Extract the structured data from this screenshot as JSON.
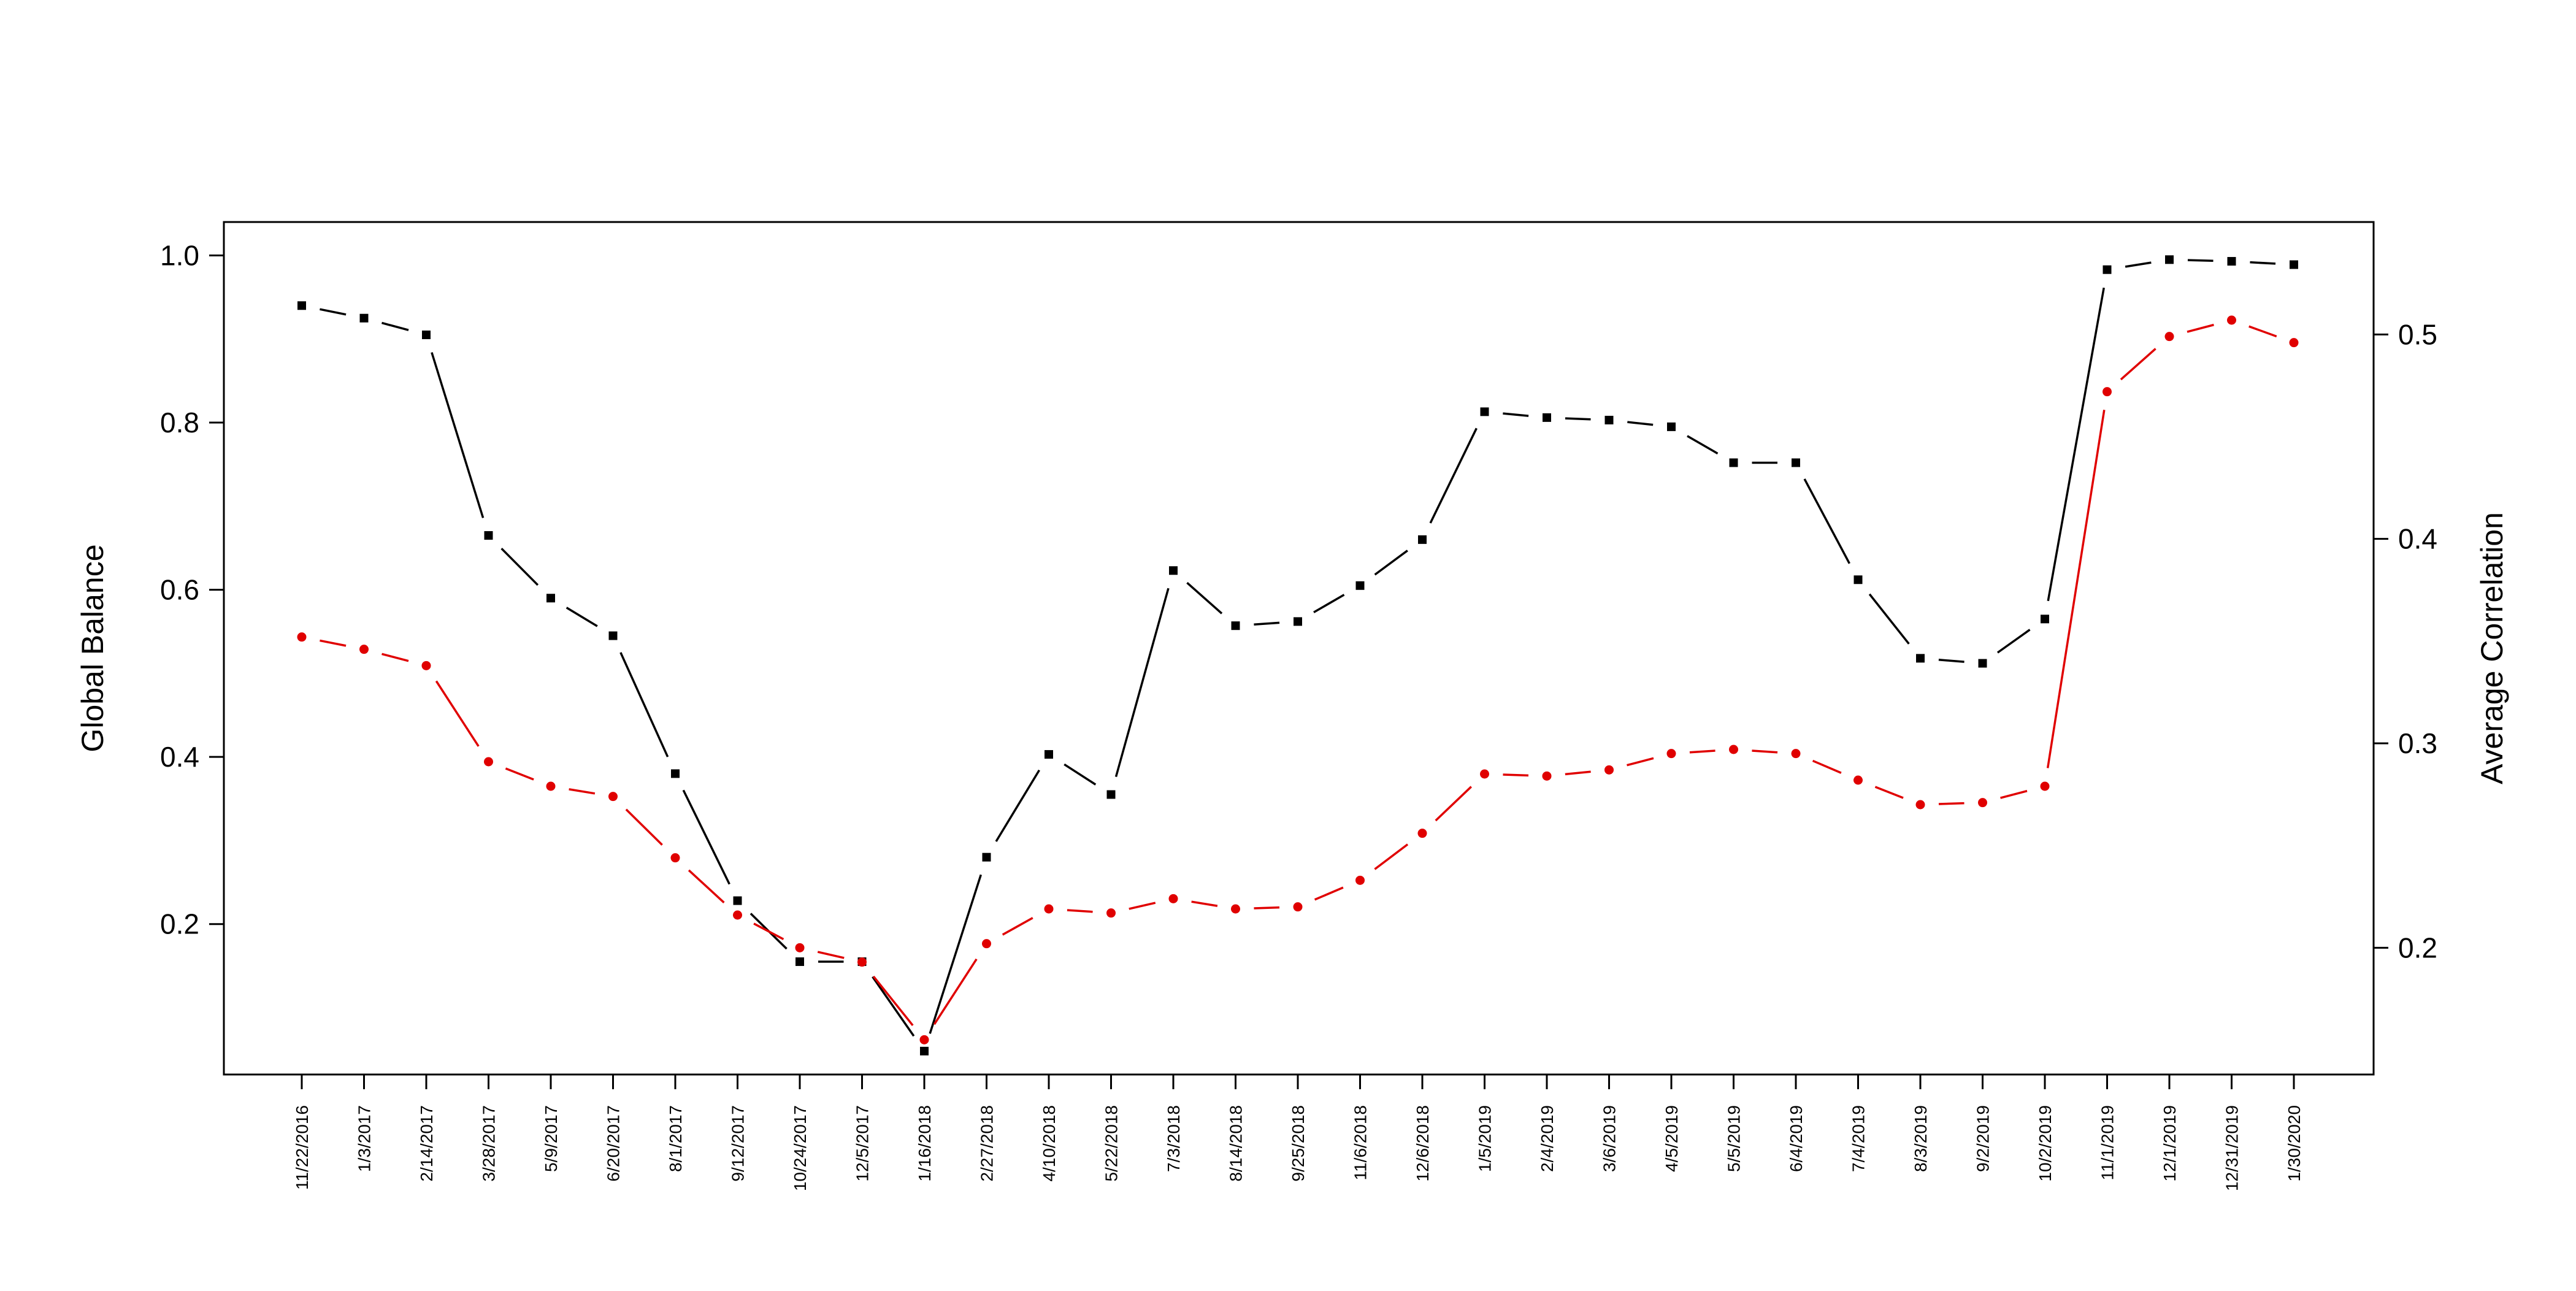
{
  "chart_data": {
    "type": "line",
    "title": "",
    "xlabel": "",
    "ylabel_left": "Global Balance",
    "ylabel_right": "Average Correlation",
    "x": [
      "11/22/2016",
      "1/3/2017",
      "2/14/2017",
      "3/28/2017",
      "5/9/2017",
      "6/20/2017",
      "8/1/2017",
      "9/12/2017",
      "10/24/2017",
      "12/5/2017",
      "1/16/2018",
      "2/27/2018",
      "4/10/2018",
      "5/22/2018",
      "7/3/2018",
      "8/14/2018",
      "9/25/2018",
      "11/6/2018",
      "12/6/2018",
      "1/5/2019",
      "2/4/2019",
      "3/6/2019",
      "4/5/2019",
      "5/5/2019",
      "6/4/2019",
      "7/4/2019",
      "8/3/2019",
      "9/2/2019",
      "10/2/2019",
      "11/1/2019",
      "12/1/2019",
      "12/31/2019",
      "1/30/2020"
    ],
    "left_axis": {
      "range": [
        0.02,
        1.04
      ],
      "ticks": [
        0.2,
        0.4,
        0.6,
        0.8,
        1.0
      ],
      "tick_labels": [
        "0.2",
        "0.4",
        "0.6",
        "0.8",
        "1.0"
      ]
    },
    "right_axis": {
      "range": [
        0.138,
        0.555
      ],
      "ticks": [
        0.2,
        0.3,
        0.4,
        0.5
      ],
      "tick_labels": [
        "0.2",
        "0.3",
        "0.4",
        "0.5"
      ]
    },
    "grid": false,
    "legend": "none",
    "series": [
      {
        "axis": "left",
        "color": "#000000",
        "marker": "square",
        "values": [
          0.94,
          0.925,
          0.905,
          0.665,
          0.59,
          0.545,
          0.38,
          0.228,
          0.155,
          0.155,
          0.048,
          0.28,
          0.403,
          0.355,
          0.623,
          0.557,
          0.562,
          0.605,
          0.66,
          0.813,
          0.806,
          0.803,
          0.795,
          0.752,
          0.752,
          0.612,
          0.518,
          0.512,
          0.565,
          0.983,
          0.995,
          0.993,
          0.989
        ]
      },
      {
        "axis": "right",
        "color": "#e00000",
        "marker": "circle",
        "values": [
          0.352,
          0.346,
          0.338,
          0.291,
          0.279,
          0.274,
          0.244,
          0.216,
          0.2,
          0.193,
          0.155,
          0.202,
          0.219,
          0.217,
          0.224,
          0.219,
          0.22,
          0.233,
          0.256,
          0.285,
          0.284,
          0.287,
          0.295,
          0.297,
          0.295,
          0.282,
          0.27,
          0.271,
          0.279,
          0.472,
          0.499,
          0.507,
          0.496
        ]
      }
    ]
  }
}
